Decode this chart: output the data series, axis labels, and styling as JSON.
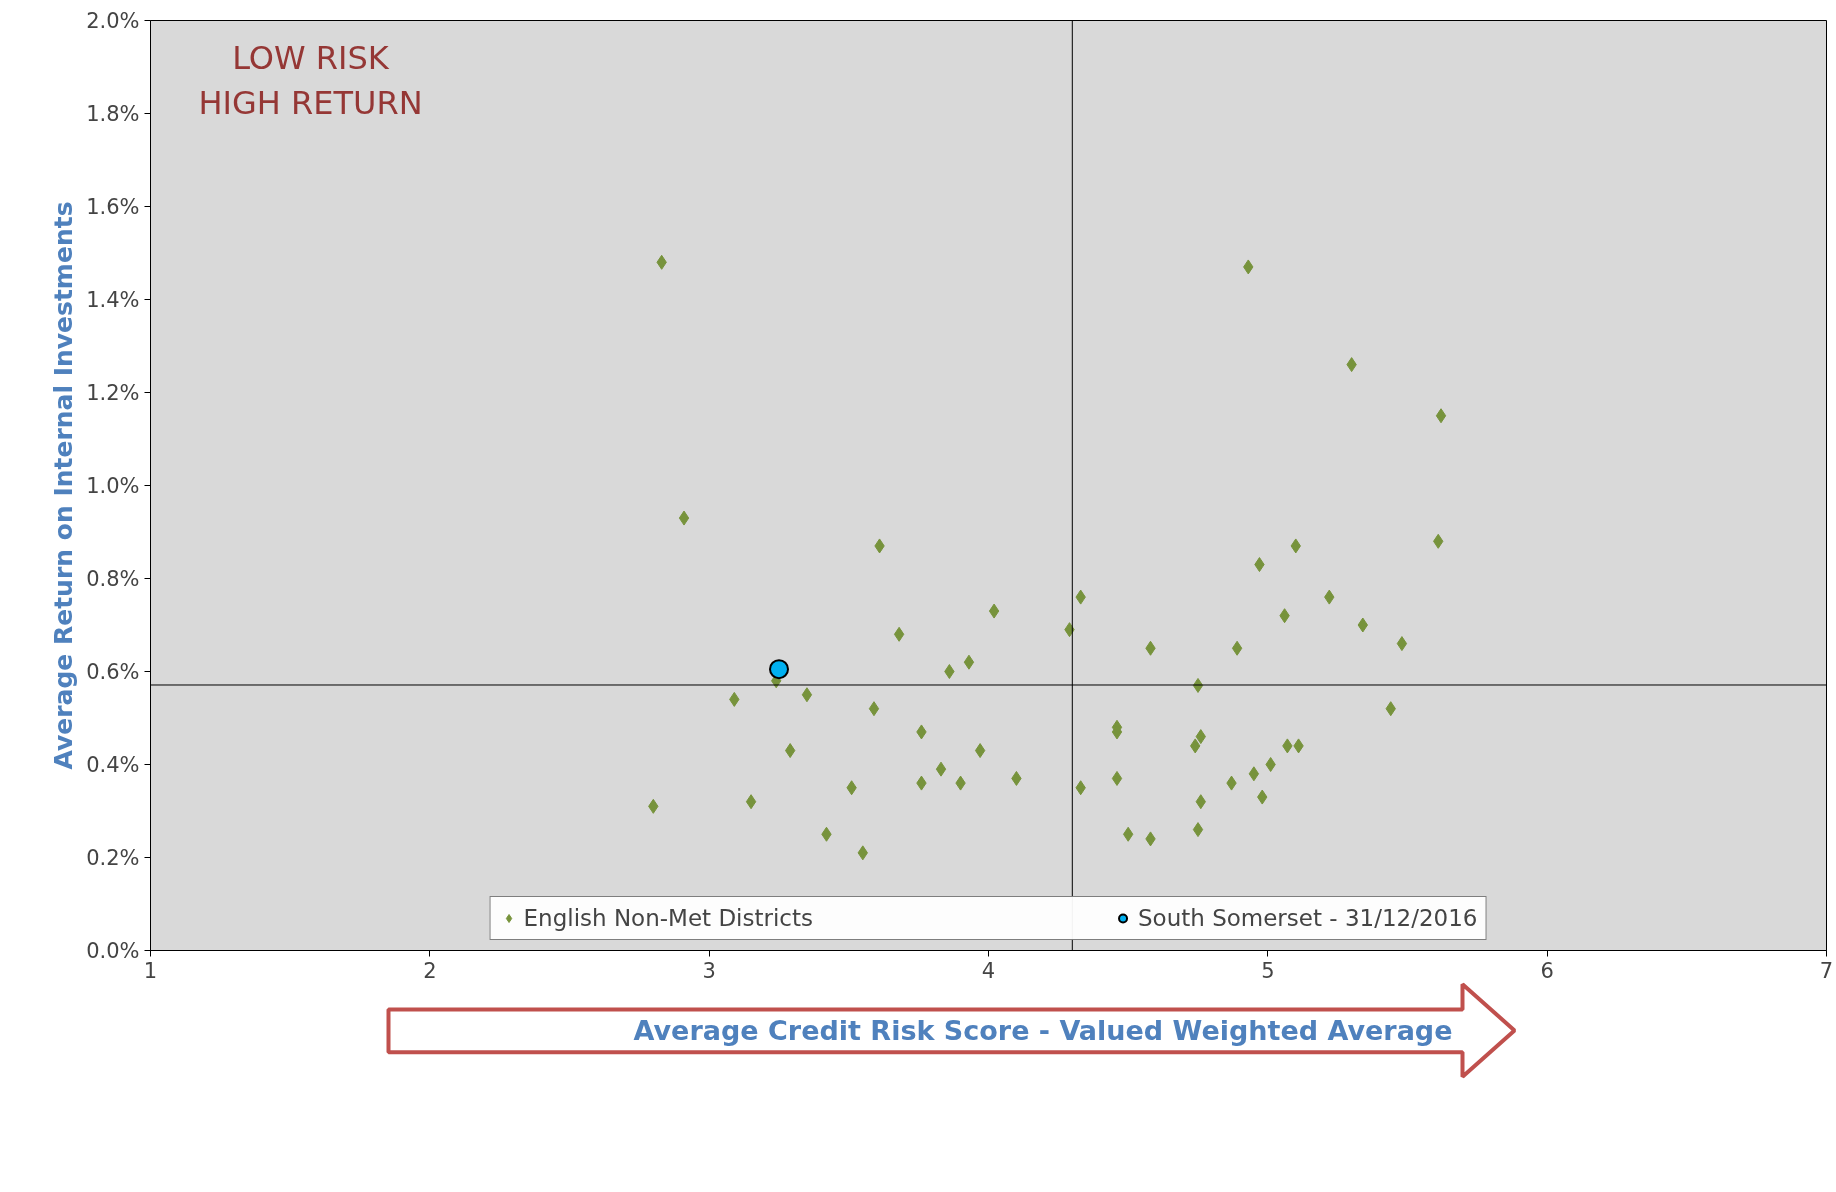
{
  "chart_data": {
    "type": "scatter",
    "xlabel": "Average Credit Risk Score - Valued Weighted Average",
    "ylabel": "Average Return on Internal Investments",
    "xlim": [
      1,
      7
    ],
    "xticks": [
      1,
      2,
      3,
      4,
      5,
      6,
      7
    ],
    "ylim": [
      0,
      2.0
    ],
    "yticks": [
      {
        "value": 0,
        "label": "0.0%"
      },
      {
        "value": 0.2,
        "label": "0.2%"
      },
      {
        "value": 0.4,
        "label": "0.4%"
      },
      {
        "value": 0.6,
        "label": "0.6%"
      },
      {
        "value": 0.8,
        "label": "0.8%"
      },
      {
        "value": 1.0,
        "label": "1.0%"
      },
      {
        "value": 1.2,
        "label": "1.2%"
      },
      {
        "value": 1.4,
        "label": "1.4%"
      },
      {
        "value": 1.6,
        "label": "1.6%"
      },
      {
        "value": 1.8,
        "label": "1.8%"
      },
      {
        "value": 2.0,
        "label": "2.0%"
      }
    ],
    "grid": false,
    "legend": "bottom",
    "annotations": [
      "LOW RISK\nHIGH RETURN"
    ],
    "ref_lines": [
      {
        "axis": "x",
        "value": 4.3,
        "color": "#000000"
      },
      {
        "axis": "y",
        "value": 0.571,
        "color": "#000000"
      }
    ],
    "series": [
      {
        "name": "English Non-Met Districts",
        "color": "#77933c",
        "marker": "diamond",
        "x": [
          2.83,
          2.91,
          2.8,
          3.09,
          3.15,
          3.24,
          3.29,
          3.35,
          3.42,
          3.51,
          3.55,
          3.59,
          3.61,
          3.68,
          3.76,
          3.76,
          3.83,
          3.86,
          3.9,
          3.93,
          3.97,
          4.02,
          4.1,
          4.29,
          4.33,
          4.33,
          4.46,
          4.46,
          4.46,
          4.5,
          4.58,
          4.58,
          4.74,
          4.75,
          4.75,
          4.76,
          4.76,
          4.87,
          4.89,
          4.93,
          4.95,
          4.97,
          4.98,
          5.01,
          5.06,
          5.07,
          5.1,
          5.11,
          5.22,
          5.3,
          5.34,
          5.44,
          5.48,
          5.61,
          5.62
        ],
        "values": [
          1.48,
          0.93,
          0.31,
          0.54,
          0.32,
          0.58,
          0.43,
          0.55,
          0.25,
          0.35,
          0.21,
          0.52,
          0.87,
          0.68,
          0.47,
          0.36,
          0.39,
          0.6,
          0.36,
          0.62,
          0.43,
          0.73,
          0.37,
          0.69,
          0.35,
          0.76,
          0.48,
          0.47,
          0.37,
          0.25,
          0.24,
          0.65,
          0.44,
          0.57,
          0.26,
          0.46,
          0.32,
          0.36,
          0.65,
          1.47,
          0.38,
          0.83,
          0.33,
          0.4,
          0.72,
          0.44,
          0.87,
          0.44,
          0.76,
          1.26,
          0.7,
          0.52,
          0.66,
          0.88,
          1.15
        ]
      },
      {
        "name": "South Somerset - 31/12/2016",
        "color": "#00b0f0",
        "marker": "circle",
        "x": [
          3.25
        ],
        "values": [
          0.605
        ]
      }
    ]
  }
}
